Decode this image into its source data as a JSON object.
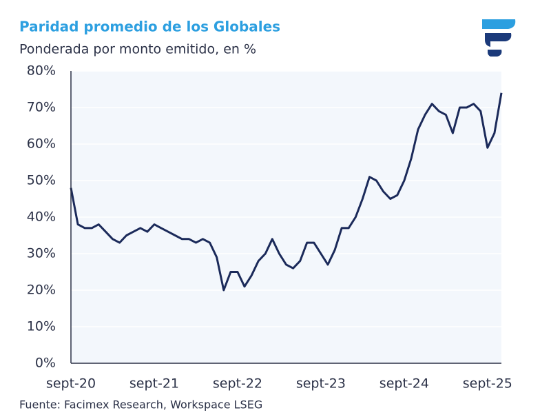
{
  "chart_data": {
    "type": "line",
    "title": "Paridad promedio de los Globales",
    "subtitle": "Ponderada por monto emitido, en %",
    "source": "Fuente: Facimex Research, Workspace LSEG",
    "categories": [
      "sept-20",
      null,
      null,
      null,
      null,
      null,
      null,
      null,
      null,
      null,
      null,
      null,
      "sept-21",
      null,
      null,
      null,
      null,
      null,
      null,
      null,
      null,
      null,
      null,
      null,
      "sept-22",
      null,
      null,
      null,
      null,
      null,
      null,
      null,
      null,
      null,
      null,
      null,
      "sept-23",
      null,
      null,
      null,
      null,
      null,
      null,
      null,
      null,
      null,
      null,
      null,
      "sept-24",
      null,
      null,
      null,
      null,
      null,
      null,
      null,
      null,
      null,
      null,
      null,
      "sept-25",
      null,
      null
    ],
    "series": [
      {
        "name": "Paridad promedio",
        "color": "#1b2a5a",
        "values": [
          48,
          38,
          37,
          37,
          38,
          36,
          34,
          33,
          35,
          36,
          37,
          36,
          38,
          37,
          36,
          35,
          34,
          34,
          33,
          34,
          33,
          29,
          20,
          25,
          25,
          21,
          24,
          28,
          30,
          34,
          30,
          27,
          26,
          28,
          33,
          33,
          30,
          27,
          31,
          37,
          37,
          40,
          45,
          51,
          50,
          47,
          45,
          46,
          50,
          56,
          64,
          68,
          71,
          69,
          68,
          63,
          70,
          70,
          71,
          69,
          59,
          63,
          74
        ]
      }
    ],
    "ylim": [
      0,
      80
    ],
    "yticks": [
      {
        "value": 0,
        "label": "0%"
      },
      {
        "value": 10,
        "label": "10%"
      },
      {
        "value": 20,
        "label": "20%"
      },
      {
        "value": 30,
        "label": "30%"
      },
      {
        "value": 40,
        "label": "40%"
      },
      {
        "value": 50,
        "label": "50%"
      },
      {
        "value": 60,
        "label": "60%"
      },
      {
        "value": 70,
        "label": "70%"
      },
      {
        "value": 80,
        "label": "80%"
      }
    ],
    "grid": true
  }
}
